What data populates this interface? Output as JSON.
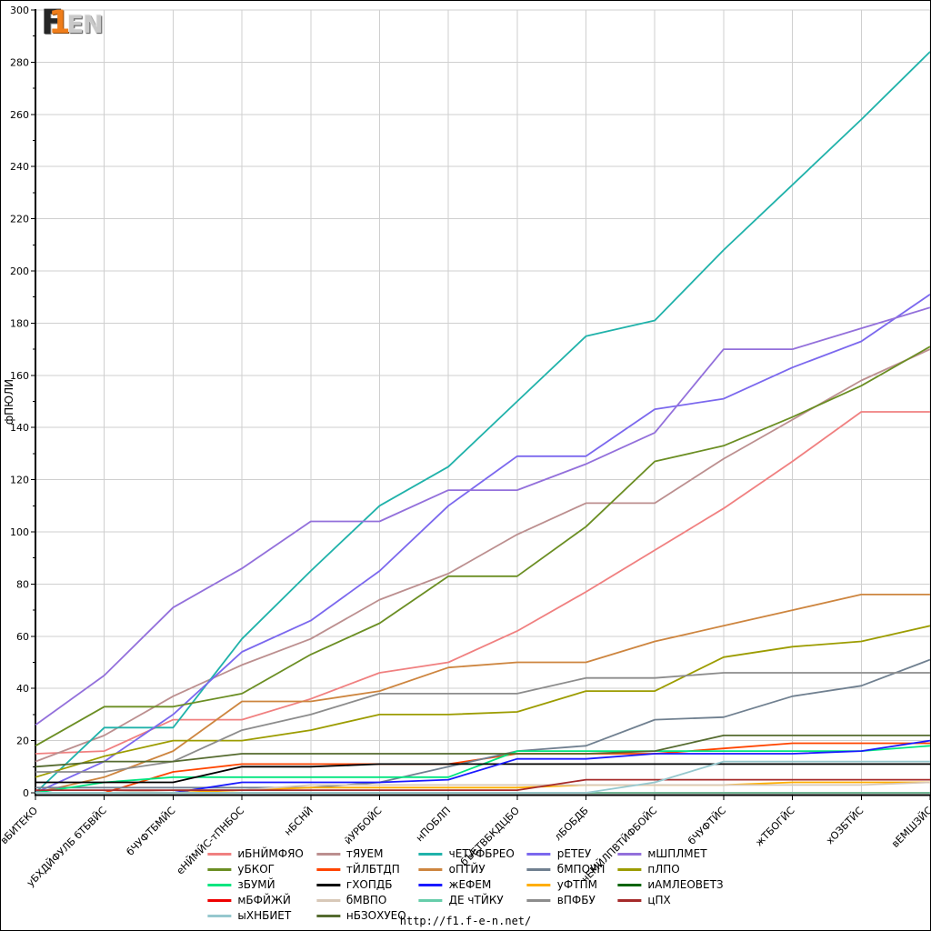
{
  "logo": {
    "f": "F",
    "one": "1",
    "en": "EN"
  },
  "footer": {
    "url": "http://f1.f-e-n.net/"
  },
  "colors": {
    "grid": "#cfcfcf",
    "axis": "#000000",
    "background": "#ffffff"
  },
  "chart_data": {
    "type": "line",
    "title": "",
    "xlabel": "",
    "ylabel": "фПЮЛИ",
    "ylim": [
      0,
      300
    ],
    "ytick_step": 20,
    "ytick_minor_step": 10,
    "grid": true,
    "legend_position": "bottom",
    "categories": [
      "вБИТЕКО",
      "уБХДЙФУЛБ бТБВЙС",
      "бЧУФТБМЙС",
      "еНЙМЙС-тПНБОС",
      "нБСНЙ",
      "йУРБОЙС",
      "нПОБЛП",
      "бЪЕТВБКДЦБО",
      "лБОБДБ",
      "чЕМЙЛПВТЙФБОЙС",
      "бЧУФТЙС",
      "жТБОГЙС",
      "хОЗБТЙС",
      "вЕМШЗЙС"
    ],
    "series": [
      {
        "name": "иБНЙМФЯО",
        "color": "#f08080",
        "values": [
          15,
          16,
          28,
          28,
          36,
          46,
          50,
          62,
          77,
          93,
          109,
          127,
          146,
          146
        ]
      },
      {
        "name": "тЯУЕМ",
        "color": "#bc8f8f",
        "values": [
          12,
          22,
          37,
          49,
          59,
          74,
          84,
          99,
          111,
          111,
          128,
          143,
          158,
          170
        ]
      },
      {
        "name": "чЕТУФБРЕО",
        "color": "#20b2aa",
        "values": [
          0,
          25,
          25,
          59,
          85,
          110,
          125,
          150,
          175,
          181,
          208,
          233,
          258,
          284
        ]
      },
      {
        "name": "рЕТЕУ",
        "color": "#7b68ee",
        "values": [
          0,
          12,
          30,
          54,
          66,
          85,
          110,
          129,
          129,
          147,
          151,
          163,
          173,
          191
        ]
      },
      {
        "name": "мШПЛМЕТ",
        "color": "#9370db",
        "values": [
          26,
          45,
          71,
          86,
          104,
          104,
          116,
          116,
          126,
          138,
          170,
          170,
          178,
          186
        ]
      },
      {
        "name": "уБКОГ",
        "color": "#6b8e23",
        "values": [
          18,
          33,
          33,
          38,
          53,
          65,
          83,
          83,
          102,
          127,
          133,
          144,
          156,
          171
        ]
      },
      {
        "name": "тЙЛБТДП",
        "color": "#ff4500",
        "values": [
          0,
          0,
          8,
          11,
          11,
          11,
          11,
          15,
          15,
          15,
          17,
          19,
          19,
          19
        ]
      },
      {
        "name": "оПТЙУ",
        "color": "#cd853f",
        "values": [
          0,
          6,
          16,
          35,
          35,
          39,
          48,
          50,
          50,
          58,
          64,
          70,
          76,
          76
        ]
      },
      {
        "name": "бМПОУП",
        "color": "#708090",
        "values": [
          2,
          2,
          2,
          2,
          2,
          4,
          10,
          16,
          18,
          28,
          29,
          37,
          41,
          51
        ]
      },
      {
        "name": "пЛПО",
        "color": "#9c9c00",
        "values": [
          6,
          14,
          20,
          20,
          24,
          30,
          30,
          31,
          39,
          39,
          52,
          56,
          58,
          64
        ]
      },
      {
        "name": "зБУМЙ",
        "color": "#00e57f",
        "values": [
          0,
          4,
          6,
          6,
          6,
          6,
          6,
          16,
          16,
          16,
          16,
          16,
          16,
          18
        ]
      },
      {
        "name": "гХОПДБ",
        "color": "#000000",
        "values": [
          4,
          4,
          4,
          10,
          10,
          11,
          11,
          11,
          11,
          11,
          11,
          11,
          11,
          11
        ]
      },
      {
        "name": "жЕФЕМ",
        "color": "#1a1aff",
        "values": [
          0,
          0,
          0,
          4,
          4,
          4,
          5,
          13,
          13,
          15,
          15,
          15,
          16,
          20
        ]
      },
      {
        "name": "уФТПМ",
        "color": "#ffae00",
        "values": [
          0,
          0,
          0,
          1,
          2,
          2,
          2,
          2,
          3,
          3,
          3,
          4,
          4,
          4
        ]
      },
      {
        "name": "иАМЛЕОВЕТЗ",
        "color": "#006400",
        "values": [
          0,
          0,
          0,
          0,
          0,
          0,
          0,
          0,
          0,
          0,
          0,
          0,
          0,
          0
        ]
      },
      {
        "name": "мБФЙЖЙ",
        "color": "#ee0000",
        "values": [
          0,
          0,
          0,
          0,
          0,
          0,
          0,
          0,
          0,
          0,
          0,
          0,
          0,
          0
        ]
      },
      {
        "name": "бМВПО",
        "color": "#d8c8b8",
        "values": [
          0,
          0,
          1,
          1,
          3,
          3,
          3,
          3,
          3,
          3,
          3,
          3,
          3,
          4
        ]
      },
      {
        "name": "ДЕ чТЙКУ",
        "color": "#66cdaa",
        "values": [
          0,
          0,
          0,
          0,
          0,
          0,
          0,
          0,
          0,
          0,
          0,
          0,
          0,
          0
        ]
      },
      {
        "name": "вПФБУ",
        "color": "#8c8c8c",
        "values": [
          8,
          8,
          12,
          24,
          30,
          38,
          38,
          38,
          44,
          44,
          46,
          46,
          46,
          46
        ]
      },
      {
        "name": "цПХ",
        "color": "#a52a2a",
        "values": [
          1,
          1,
          1,
          1,
          1,
          1,
          1,
          1,
          5,
          5,
          5,
          5,
          5,
          5
        ]
      },
      {
        "name": "ыХНБИЕТ",
        "color": "#96c8ce",
        "values": [
          0,
          0,
          0,
          0,
          0,
          0,
          0,
          0,
          0,
          4,
          12,
          12,
          12,
          12
        ]
      },
      {
        "name": "нБЗОХУЕО",
        "color": "#556b2f",
        "values": [
          10,
          12,
          12,
          15,
          15,
          15,
          15,
          15,
          15,
          16,
          22,
          22,
          22,
          22
        ]
      }
    ]
  }
}
